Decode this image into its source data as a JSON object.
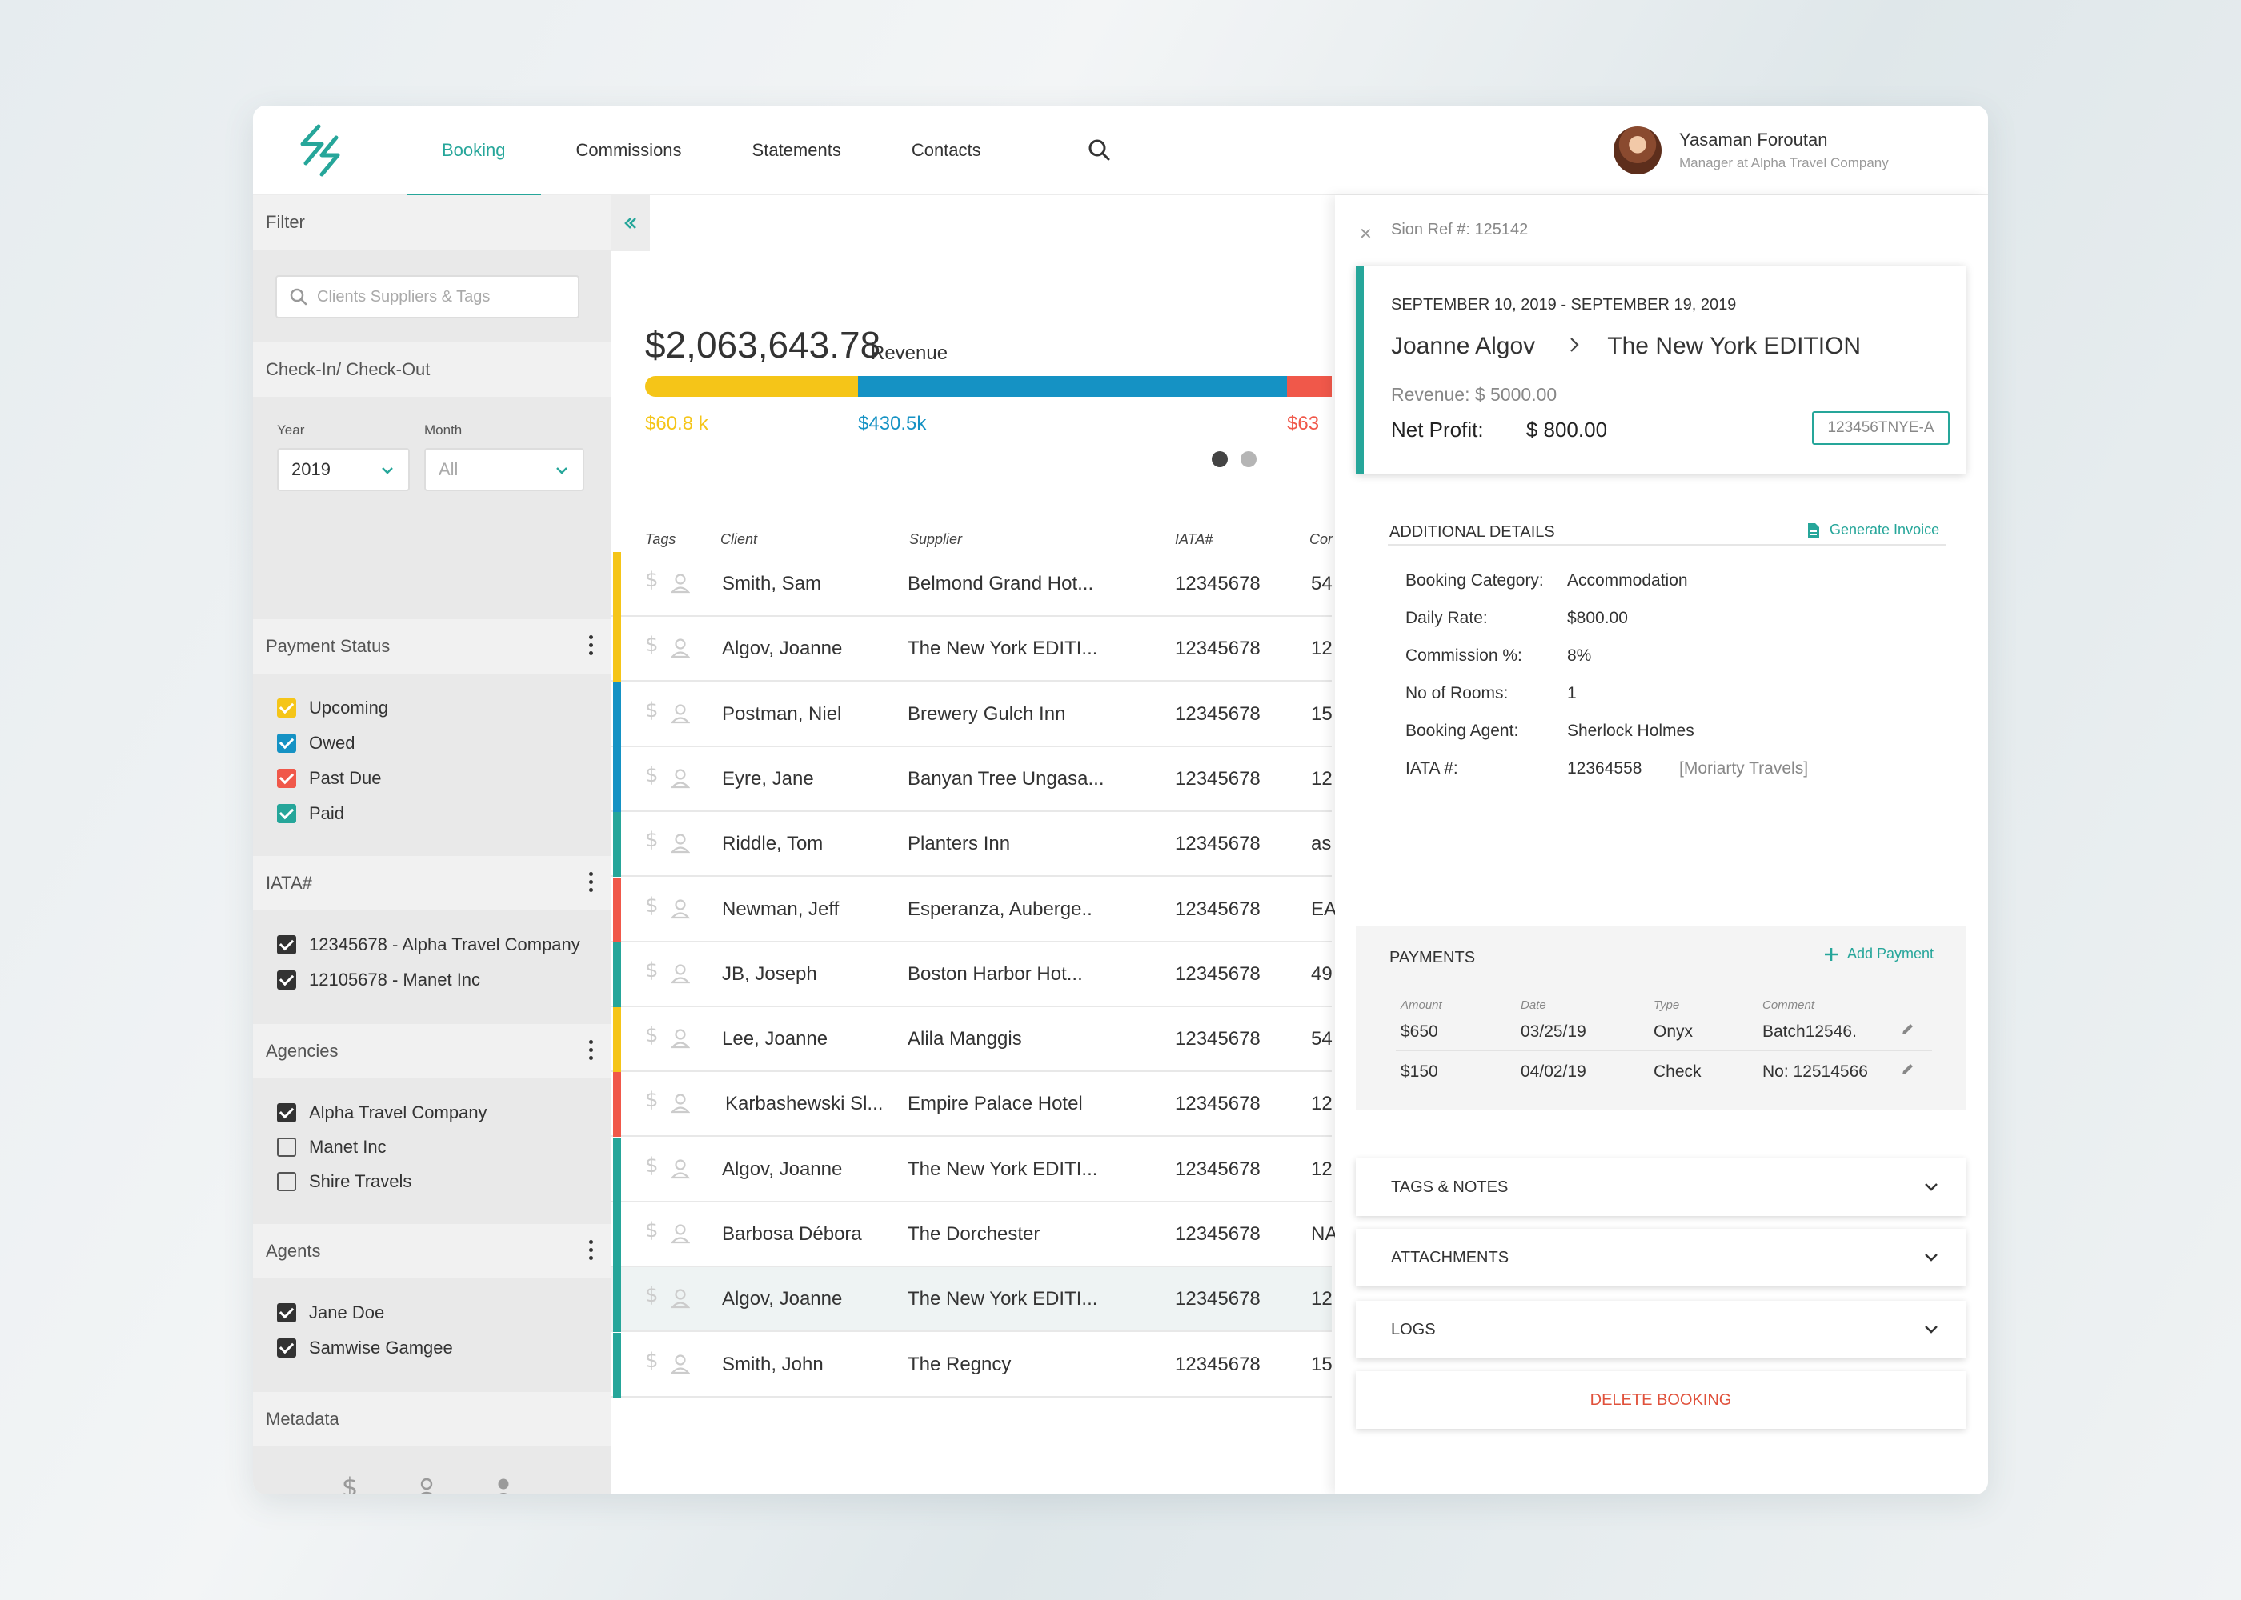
{
  "colors": {
    "accent": "#26a69a",
    "upcoming": "#f5c518",
    "owed": "#1592c4",
    "past_due": "#f0584a",
    "paid": "#26a69a",
    "delete": "#e0513b"
  },
  "nav": {
    "items": [
      {
        "label": "Booking",
        "active": true
      },
      {
        "label": "Commissions",
        "active": false
      },
      {
        "label": "Statements",
        "active": false
      },
      {
        "label": "Contacts",
        "active": false
      }
    ],
    "search_icon": "search-icon"
  },
  "user": {
    "name": "Yasaman Foroutan",
    "role": "Manager at Alpha Travel Company"
  },
  "sidebar": {
    "filter_label": "Filter",
    "search_placeholder": "Clients Suppliers & Tags",
    "checkin_label": "Check-In/ Check-Out",
    "year_label": "Year",
    "year_value": "2019",
    "month_label": "Month",
    "month_value": "All",
    "payment_status": {
      "label": "Payment Status",
      "items": [
        {
          "label": "Upcoming",
          "checked": true
        },
        {
          "label": "Owed",
          "checked": true
        },
        {
          "label": "Past Due",
          "checked": true
        },
        {
          "label": "Paid",
          "checked": true
        }
      ]
    },
    "iata": {
      "label": "IATA#",
      "items": [
        {
          "label": "12345678 - Alpha Travel Company",
          "checked": true
        },
        {
          "label": "12105678 - Manet Inc",
          "checked": true
        }
      ]
    },
    "agencies": {
      "label": "Agencies",
      "items": [
        {
          "label": "Alpha Travel Company",
          "checked": true
        },
        {
          "label": "Manet Inc",
          "checked": false
        },
        {
          "label": "Shire Travels",
          "checked": false
        }
      ]
    },
    "agents": {
      "label": "Agents",
      "items": [
        {
          "label": "Jane Doe",
          "checked": true
        },
        {
          "label": "Samwise Gamgee",
          "checked": true
        }
      ]
    },
    "metadata_label": "Metadata"
  },
  "revenue": {
    "amount": "$2,063,643.78",
    "label": "Revenue",
    "segments": [
      {
        "value": "$60.8 k",
        "share": 0.31
      },
      {
        "value": "$430.5k",
        "share": 0.625
      },
      {
        "value": "$63",
        "share": 0.065
      }
    ]
  },
  "table": {
    "headers": {
      "tags": "Tags",
      "client": "Client",
      "supplier": "Supplier",
      "iata": "IATA#",
      "com": "Cor"
    },
    "rows": [
      {
        "status": "upcoming",
        "client": "Smith, Sam",
        "supplier": "Belmond Grand Hot...",
        "iata": "12345678",
        "com": "54"
      },
      {
        "status": "upcoming",
        "client": "Algov, Joanne",
        "supplier": "The New York EDITI...",
        "iata": "12345678",
        "com": "12"
      },
      {
        "status": "owed",
        "client": "Postman, Niel",
        "supplier": "Brewery Gulch Inn",
        "iata": "12345678",
        "com": "15"
      },
      {
        "status": "owed",
        "client": "Eyre, Jane",
        "supplier": "Banyan Tree Ungasa...",
        "iata": "12345678",
        "com": "12"
      },
      {
        "status": "paid",
        "client": "Riddle, Tom",
        "supplier": "Planters Inn",
        "iata": "12345678",
        "com": "as"
      },
      {
        "status": "past_due",
        "client": "Newman, Jeff",
        "supplier": "Esperanza, Auberge..",
        "iata": "12345678",
        "com": "EA"
      },
      {
        "status": "paid",
        "client": "JB, Joseph",
        "supplier": "Boston Harbor Hot...",
        "iata": "12345678",
        "com": "49"
      },
      {
        "status": "upcoming",
        "client": "Lee, Joanne",
        "supplier": "Alila Manggis",
        "iata": "12345678",
        "com": "54"
      },
      {
        "status": "past_due",
        "client": "Karbashewski Sl...",
        "supplier": "Empire Palace Hotel",
        "iata": "12345678",
        "com": "12"
      },
      {
        "status": "paid",
        "client": "Algov, Joanne",
        "supplier": "The New York EDITI...",
        "iata": "12345678",
        "com": "12"
      },
      {
        "status": "paid",
        "client": "Barbosa Débora",
        "supplier": "The Dorchester",
        "iata": "12345678",
        "com": "NA"
      },
      {
        "status": "paid",
        "client": "Algov, Joanne",
        "supplier": "The New York EDITI...",
        "iata": "12345678",
        "com": "12",
        "selected": true
      },
      {
        "status": "paid",
        "client": "Smith, John",
        "supplier": "The Regncy",
        "iata": "12345678",
        "com": "15"
      }
    ]
  },
  "detail": {
    "ref": "Sion Ref #: 125142",
    "dates": "SEPTEMBER 10, 2019 - SEPTEMBER 19, 2019",
    "client": "Joanne Algov",
    "supplier": "The New York EDITION",
    "revenue": "Revenue:  $ 5000.00",
    "net_profit_label": "Net Profit:",
    "net_profit_value": "$ 800.00",
    "code": "123456TNYE-A",
    "additional_title": "ADDITIONAL DETAILS",
    "generate_invoice": "Generate Invoice",
    "fields": [
      {
        "label": "Booking Category:",
        "value": "Accommodation"
      },
      {
        "label": "Daily Rate:",
        "value": "$800.00"
      },
      {
        "label": "Commission %:",
        "value": "8%"
      },
      {
        "label": "No of Rooms:",
        "value": "1"
      },
      {
        "label": "Booking Agent:",
        "value": "Sherlock Holmes"
      },
      {
        "label": "IATA #:",
        "value": "12364558",
        "extra": "[Moriarty Travels]"
      }
    ],
    "payments_title": "PAYMENTS",
    "add_payment": "Add Payment",
    "payment_headers": {
      "amount": "Amount",
      "date": "Date",
      "type": "Type",
      "comment": "Comment"
    },
    "payments": [
      {
        "amount": "$650",
        "date": "03/25/19",
        "type": "Onyx",
        "comment": "Batch12546."
      },
      {
        "amount": "$150",
        "date": "04/02/19",
        "type": "Check",
        "comment": "No: 12514566"
      }
    ],
    "tags_notes": "TAGS & NOTES",
    "attachments": "ATTACHMENTS",
    "logs": "LOGS",
    "delete": "DELETE BOOKING"
  }
}
